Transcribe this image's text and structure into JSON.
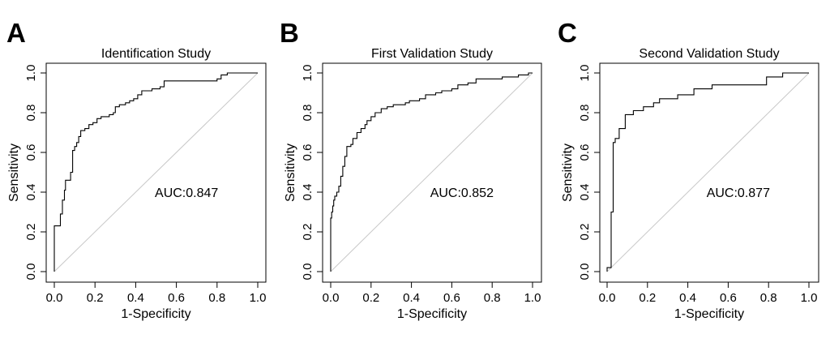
{
  "chart_data": [
    {
      "type": "line",
      "panel": "A",
      "title": "Identification Study",
      "xlabel": "1-Specificity",
      "ylabel": "Sensitivity",
      "xlim": [
        0,
        1
      ],
      "ylim": [
        0,
        1
      ],
      "x_ticks": [
        "0.0",
        "0.2",
        "0.4",
        "0.6",
        "0.8",
        "1.0"
      ],
      "y_ticks": [
        "0.0",
        "0.2",
        "0.4",
        "0.6",
        "0.8",
        "1.0"
      ],
      "auc_label": "AUC:0.847",
      "reference_line": "diagonal",
      "series": [
        {
          "name": "ROC",
          "points": [
            [
              0,
              0
            ],
            [
              0,
              0.23
            ],
            [
              0.03,
              0.23
            ],
            [
              0.03,
              0.29
            ],
            [
              0.04,
              0.29
            ],
            [
              0.04,
              0.36
            ],
            [
              0.05,
              0.36
            ],
            [
              0.05,
              0.41
            ],
            [
              0.055,
              0.41
            ],
            [
              0.055,
              0.46
            ],
            [
              0.08,
              0.46
            ],
            [
              0.08,
              0.5
            ],
            [
              0.09,
              0.5
            ],
            [
              0.09,
              0.61
            ],
            [
              0.1,
              0.61
            ],
            [
              0.1,
              0.63
            ],
            [
              0.11,
              0.63
            ],
            [
              0.11,
              0.65
            ],
            [
              0.12,
              0.65
            ],
            [
              0.12,
              0.68
            ],
            [
              0.13,
              0.68
            ],
            [
              0.13,
              0.71
            ],
            [
              0.15,
              0.71
            ],
            [
              0.15,
              0.72
            ],
            [
              0.17,
              0.72
            ],
            [
              0.17,
              0.74
            ],
            [
              0.19,
              0.74
            ],
            [
              0.19,
              0.75
            ],
            [
              0.21,
              0.75
            ],
            [
              0.21,
              0.77
            ],
            [
              0.23,
              0.77
            ],
            [
              0.23,
              0.78
            ],
            [
              0.27,
              0.78
            ],
            [
              0.27,
              0.79
            ],
            [
              0.29,
              0.79
            ],
            [
              0.29,
              0.8
            ],
            [
              0.3,
              0.8
            ],
            [
              0.3,
              0.83
            ],
            [
              0.32,
              0.83
            ],
            [
              0.32,
              0.84
            ],
            [
              0.35,
              0.84
            ],
            [
              0.35,
              0.85
            ],
            [
              0.37,
              0.85
            ],
            [
              0.37,
              0.86
            ],
            [
              0.39,
              0.86
            ],
            [
              0.39,
              0.87
            ],
            [
              0.41,
              0.87
            ],
            [
              0.41,
              0.89
            ],
            [
              0.43,
              0.89
            ],
            [
              0.43,
              0.91
            ],
            [
              0.48,
              0.91
            ],
            [
              0.48,
              0.92
            ],
            [
              0.52,
              0.92
            ],
            [
              0.52,
              0.93
            ],
            [
              0.54,
              0.93
            ],
            [
              0.54,
              0.96
            ],
            [
              0.8,
              0.96
            ],
            [
              0.8,
              0.97
            ],
            [
              0.82,
              0.97
            ],
            [
              0.82,
              0.99
            ],
            [
              0.85,
              0.99
            ],
            [
              0.85,
              1.0
            ],
            [
              1.0,
              1.0
            ]
          ]
        }
      ]
    },
    {
      "type": "line",
      "panel": "B",
      "title": "First Validation Study",
      "xlabel": "1-Specificity",
      "ylabel": "Sensitivity",
      "xlim": [
        0,
        1
      ],
      "ylim": [
        0,
        1
      ],
      "x_ticks": [
        "0.0",
        "0.2",
        "0.4",
        "0.6",
        "0.8",
        "1.0"
      ],
      "y_ticks": [
        "0.0",
        "0.2",
        "0.4",
        "0.6",
        "0.8",
        "1.0"
      ],
      "auc_label": "AUC:0.852",
      "reference_line": "diagonal",
      "series": [
        {
          "name": "ROC",
          "points": [
            [
              0,
              0
            ],
            [
              0,
              0.27
            ],
            [
              0.005,
              0.27
            ],
            [
              0.005,
              0.3
            ],
            [
              0.01,
              0.3
            ],
            [
              0.01,
              0.33
            ],
            [
              0.015,
              0.33
            ],
            [
              0.015,
              0.36
            ],
            [
              0.02,
              0.36
            ],
            [
              0.02,
              0.38
            ],
            [
              0.03,
              0.38
            ],
            [
              0.03,
              0.4
            ],
            [
              0.04,
              0.4
            ],
            [
              0.04,
              0.43
            ],
            [
              0.05,
              0.43
            ],
            [
              0.05,
              0.48
            ],
            [
              0.06,
              0.48
            ],
            [
              0.06,
              0.53
            ],
            [
              0.07,
              0.53
            ],
            [
              0.07,
              0.58
            ],
            [
              0.08,
              0.58
            ],
            [
              0.08,
              0.63
            ],
            [
              0.1,
              0.63
            ],
            [
              0.1,
              0.64
            ],
            [
              0.11,
              0.64
            ],
            [
              0.11,
              0.67
            ],
            [
              0.13,
              0.67
            ],
            [
              0.13,
              0.7
            ],
            [
              0.15,
              0.7
            ],
            [
              0.15,
              0.72
            ],
            [
              0.17,
              0.72
            ],
            [
              0.17,
              0.74
            ],
            [
              0.18,
              0.74
            ],
            [
              0.18,
              0.76
            ],
            [
              0.2,
              0.76
            ],
            [
              0.2,
              0.78
            ],
            [
              0.22,
              0.78
            ],
            [
              0.22,
              0.8
            ],
            [
              0.25,
              0.8
            ],
            [
              0.25,
              0.82
            ],
            [
              0.28,
              0.82
            ],
            [
              0.28,
              0.83
            ],
            [
              0.31,
              0.83
            ],
            [
              0.31,
              0.84
            ],
            [
              0.37,
              0.84
            ],
            [
              0.37,
              0.85
            ],
            [
              0.39,
              0.85
            ],
            [
              0.39,
              0.86
            ],
            [
              0.44,
              0.86
            ],
            [
              0.44,
              0.87
            ],
            [
              0.47,
              0.87
            ],
            [
              0.47,
              0.89
            ],
            [
              0.52,
              0.89
            ],
            [
              0.52,
              0.9
            ],
            [
              0.55,
              0.9
            ],
            [
              0.55,
              0.91
            ],
            [
              0.6,
              0.91
            ],
            [
              0.6,
              0.92
            ],
            [
              0.63,
              0.92
            ],
            [
              0.63,
              0.94
            ],
            [
              0.68,
              0.94
            ],
            [
              0.68,
              0.95
            ],
            [
              0.72,
              0.95
            ],
            [
              0.72,
              0.97
            ],
            [
              0.85,
              0.97
            ],
            [
              0.85,
              0.98
            ],
            [
              0.93,
              0.98
            ],
            [
              0.93,
              0.99
            ],
            [
              0.98,
              0.99
            ],
            [
              0.98,
              1.0
            ],
            [
              1.0,
              1.0
            ]
          ]
        }
      ]
    },
    {
      "type": "line",
      "panel": "C",
      "title": "Second Validation Study",
      "xlabel": "1-Specificity",
      "ylabel": "Sensitivity",
      "xlim": [
        0,
        1
      ],
      "ylim": [
        0,
        1
      ],
      "x_ticks": [
        "0.0",
        "0.2",
        "0.4",
        "0.6",
        "0.8",
        "1.0"
      ],
      "y_ticks": [
        "0.0",
        "0.2",
        "0.4",
        "0.6",
        "0.8",
        "1.0"
      ],
      "auc_label": "AUC:0.877",
      "reference_line": "diagonal",
      "series": [
        {
          "name": "ROC",
          "points": [
            [
              0,
              0
            ],
            [
              0,
              0.02
            ],
            [
              0.02,
              0.02
            ],
            [
              0.02,
              0.3
            ],
            [
              0.03,
              0.3
            ],
            [
              0.03,
              0.65
            ],
            [
              0.04,
              0.65
            ],
            [
              0.04,
              0.67
            ],
            [
              0.06,
              0.67
            ],
            [
              0.06,
              0.72
            ],
            [
              0.09,
              0.72
            ],
            [
              0.09,
              0.79
            ],
            [
              0.13,
              0.79
            ],
            [
              0.13,
              0.81
            ],
            [
              0.18,
              0.81
            ],
            [
              0.18,
              0.83
            ],
            [
              0.23,
              0.83
            ],
            [
              0.23,
              0.85
            ],
            [
              0.26,
              0.85
            ],
            [
              0.26,
              0.87
            ],
            [
              0.35,
              0.87
            ],
            [
              0.35,
              0.89
            ],
            [
              0.43,
              0.89
            ],
            [
              0.43,
              0.92
            ],
            [
              0.52,
              0.92
            ],
            [
              0.52,
              0.94
            ],
            [
              0.79,
              0.94
            ],
            [
              0.79,
              0.98
            ],
            [
              0.87,
              0.98
            ],
            [
              0.87,
              1.0
            ],
            [
              1.0,
              1.0
            ]
          ]
        }
      ]
    }
  ]
}
